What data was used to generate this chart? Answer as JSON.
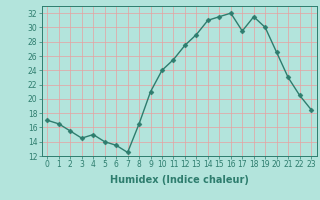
{
  "x": [
    0,
    1,
    2,
    3,
    4,
    5,
    6,
    7,
    8,
    9,
    10,
    11,
    12,
    13,
    14,
    15,
    16,
    17,
    18,
    19,
    20,
    21,
    22,
    23
  ],
  "y": [
    17,
    16.5,
    15.5,
    14.5,
    15,
    14,
    13.5,
    12.5,
    16.5,
    21,
    24,
    25.5,
    27.5,
    29,
    31,
    31.5,
    32,
    29.5,
    31.5,
    30,
    26.5,
    23,
    20.5,
    18.5
  ],
  "line_color": "#2e7d6e",
  "marker": "D",
  "marker_size": 2.5,
  "bg_color": "#b3e4dc",
  "grid_color": "#e8a0a0",
  "xlabel": "Humidex (Indice chaleur)",
  "xlim": [
    -0.5,
    23.5
  ],
  "ylim": [
    12,
    33
  ],
  "yticks": [
    12,
    14,
    16,
    18,
    20,
    22,
    24,
    26,
    28,
    30,
    32
  ],
  "xticks": [
    0,
    1,
    2,
    3,
    4,
    5,
    6,
    7,
    8,
    9,
    10,
    11,
    12,
    13,
    14,
    15,
    16,
    17,
    18,
    19,
    20,
    21,
    22,
    23
  ],
  "tick_label_fontsize": 5.5,
  "xlabel_fontsize": 7.0,
  "line_width": 1.0
}
